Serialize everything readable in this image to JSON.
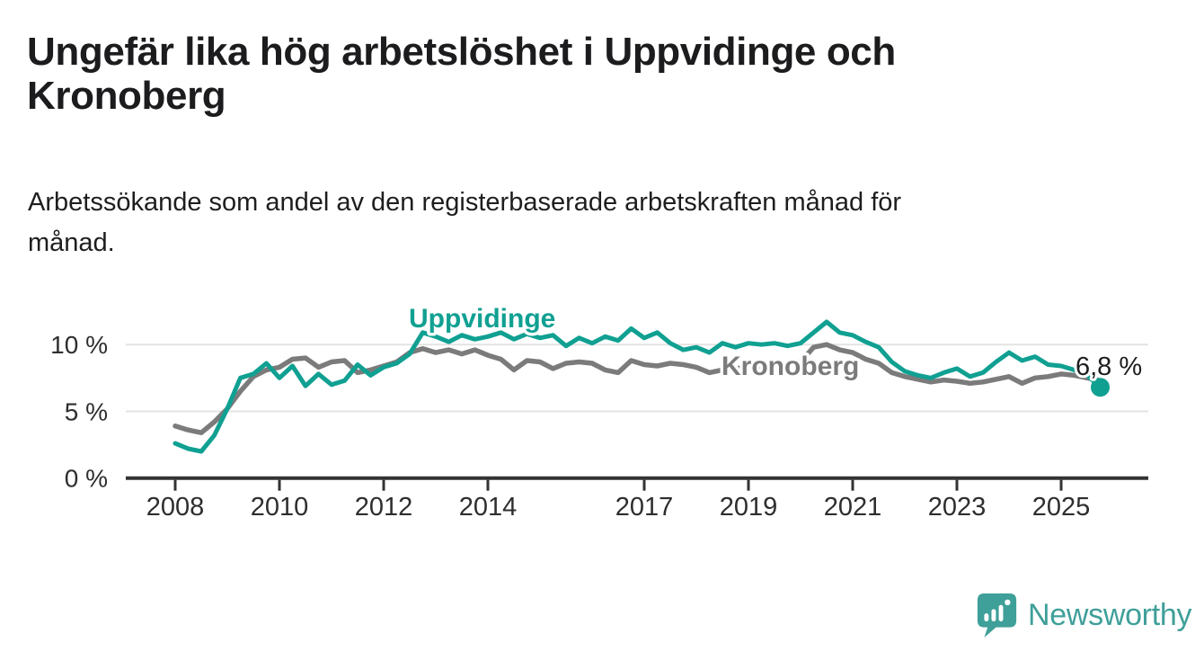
{
  "header": {
    "title_lines": [
      "Ungefär lika hög arbetslöshet i Uppvidinge och",
      "Kronoberg"
    ],
    "subtitle_lines": [
      "Arbetssökande som andel av den registerbaserade arbetskraften månad för",
      "månad."
    ]
  },
  "chart_data": {
    "type": "line",
    "title": "Ungefär lika hög arbetslöshet i Uppvidinge och Kronoberg",
    "subtitle": "Arbetssökande som andel av den registerbaserade arbetskraften månad för månad.",
    "unit": "percent",
    "grid": "horizontal-only",
    "legend": "inline-labels",
    "x_start": 2008,
    "x_step": 0.25,
    "x_tick_years": [
      2008,
      2010,
      2012,
      2014,
      2017,
      2019,
      2021,
      2023,
      2025
    ],
    "x_tick_labels": [
      "2008",
      "2010",
      "2012",
      "2014",
      "2017",
      "2019",
      "2021",
      "2023",
      "2025"
    ],
    "y_ticks": [
      0,
      5,
      10
    ],
    "y_tick_labels": [
      "0 %",
      "5 %",
      "10 %"
    ],
    "ylim": [
      0,
      12.5
    ],
    "series": [
      {
        "name": "Uppvidinge",
        "color": "#10a092",
        "end_label": "6,8 %",
        "end_value": 6.8,
        "end_marker": true,
        "values": [
          2.6,
          2.2,
          2.0,
          3.2,
          5.2,
          7.5,
          7.8,
          8.6,
          7.5,
          8.4,
          6.9,
          7.8,
          7.0,
          7.3,
          8.5,
          7.7,
          8.3,
          8.6,
          9.3,
          10.9,
          10.6,
          10.2,
          10.7,
          10.4,
          10.6,
          10.9,
          10.4,
          10.8,
          10.5,
          10.7,
          9.9,
          10.5,
          10.1,
          10.6,
          10.3,
          11.2,
          10.5,
          10.9,
          10.1,
          9.6,
          9.8,
          9.4,
          10.1,
          9.8,
          10.1,
          10.0,
          10.1,
          9.9,
          10.1,
          10.9,
          11.7,
          10.9,
          10.7,
          10.2,
          9.8,
          8.7,
          8.0,
          7.7,
          7.5,
          7.9,
          8.2,
          7.6,
          7.9,
          8.7,
          9.4,
          8.8,
          9.1,
          8.5,
          8.4,
          8.1,
          7.7,
          6.8
        ]
      },
      {
        "name": "Kronoberg",
        "color": "#7b7b7b",
        "end_marker": false,
        "values": [
          3.9,
          3.6,
          3.4,
          4.2,
          5.2,
          6.5,
          7.6,
          8.1,
          8.3,
          8.9,
          9.0,
          8.3,
          8.7,
          8.8,
          7.9,
          8.1,
          8.4,
          8.7,
          9.4,
          9.7,
          9.4,
          9.6,
          9.3,
          9.6,
          9.2,
          8.9,
          8.1,
          8.8,
          8.7,
          8.2,
          8.6,
          8.7,
          8.6,
          8.1,
          7.9,
          8.8,
          8.5,
          8.4,
          8.6,
          8.5,
          8.3,
          7.9,
          8.1,
          8.2,
          8.3,
          8.2,
          8.3,
          8.5,
          8.7,
          9.8,
          10.0,
          9.6,
          9.4,
          8.9,
          8.6,
          7.9,
          7.6,
          7.4,
          7.2,
          7.35,
          7.25,
          7.1,
          7.2,
          7.4,
          7.6,
          7.1,
          7.5,
          7.6,
          7.8,
          7.7,
          7.5,
          7.3
        ]
      }
    ]
  },
  "annotations": {
    "latest_value_label": "6,8 %"
  },
  "footer": {
    "brand": "Newsworthy",
    "brand_color": "#3f9f99",
    "logo": "speech-bubble-with-bar-chart"
  },
  "colors": {
    "background": "#ffffff",
    "title_text": "#1c1c1e",
    "axis_text": "#2e2e2e",
    "axis_line": "#333333",
    "gridline": "#e3e3e3",
    "annotation_text": "#1d1d1d",
    "uppvidinge_line": "#10a092",
    "kronoberg_line": "#7b7b7b"
  }
}
